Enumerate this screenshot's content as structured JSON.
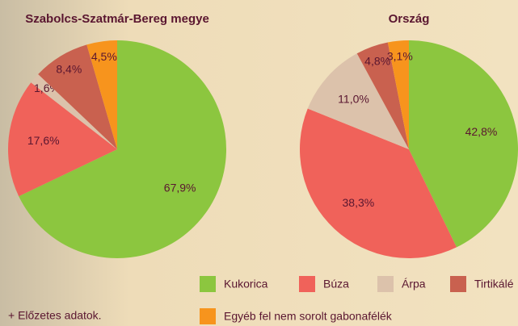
{
  "chart_data": [
    {
      "type": "pie",
      "title": "Szabolcs-Szatmár-Bereg megye",
      "categories": [
        "Kukorica",
        "Búza",
        "Árpa",
        "Tirtikálé",
        "Egyéb fel nem sorolt gabonafélék"
      ],
      "colors": [
        "#8cc63f",
        "#f0625a",
        "#dcc2ab",
        "#c9614f",
        "#f7941d"
      ],
      "values": [
        67.9,
        17.6,
        1.6,
        8.4,
        4.5
      ],
      "value_labels": [
        "67,9%",
        "17,6%",
        "1,6%",
        "8,4%",
        "4,5%"
      ]
    },
    {
      "type": "pie",
      "title": "Ország",
      "categories": [
        "Kukorica",
        "Búza",
        "Árpa",
        "Tirtikálé",
        "Egyéb fel nem sorolt gabonafélék"
      ],
      "colors": [
        "#8cc63f",
        "#f0625a",
        "#dcc2ab",
        "#c9614f",
        "#f7941d"
      ],
      "values": [
        42.8,
        38.3,
        11.0,
        4.8,
        3.1
      ],
      "value_labels": [
        "42,8%",
        "38,3%",
        "11,0%",
        "4,8%",
        "3,1%"
      ]
    }
  ],
  "footnote": "+ Előzetes adatok."
}
